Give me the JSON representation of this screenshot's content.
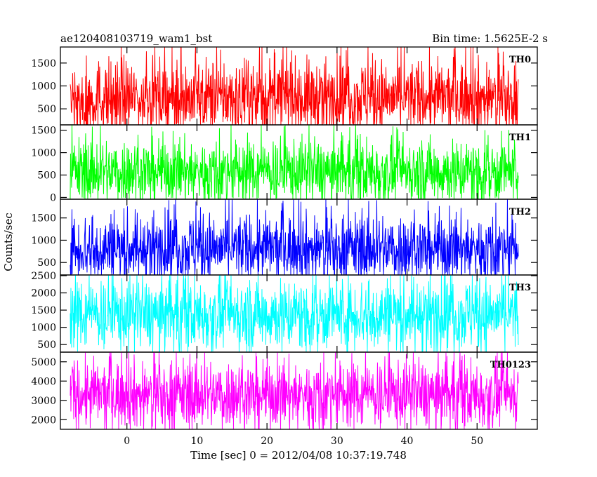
{
  "chart_data": {
    "type": "line",
    "title_left": "ae120408103719_wam1_bst",
    "title_right": "Bin time: 1.5625E-2 s",
    "xlabel": "Time [sec] 0 = 2012/04/08 10:37:19.748",
    "ylabel": "Counts/sec",
    "xlim": [
      -9.5,
      58.6
    ],
    "x_ticks": [
      0,
      10,
      20,
      30,
      40,
      50
    ],
    "x_tick_labels": [
      "0",
      "10",
      "20",
      "30",
      "40",
      "50"
    ],
    "data_range": [
      -8.1,
      55.9
    ],
    "bin_time": 0.015625,
    "panels": [
      {
        "name": "TH0",
        "color": "#ff0000",
        "ylim": [
          150,
          1850
        ],
        "y_ticks": [
          500,
          1000,
          1500
        ],
        "y_tick_labels": [
          "500",
          "1000",
          "1500"
        ],
        "mean": 750,
        "low": 150,
        "high": 1850
      },
      {
        "name": "TH1",
        "color": "#00ff00",
        "ylim": [
          -40,
          1620
        ],
        "y_ticks": [
          0,
          500,
          1000,
          1500
        ],
        "y_tick_labels": [
          "0",
          "500",
          "1000",
          "1500"
        ],
        "mean": 580,
        "low": 30,
        "high": 1560
      },
      {
        "name": "TH2",
        "color": "#0000ff",
        "ylim": [
          220,
          1920
        ],
        "y_ticks": [
          500,
          1000,
          1500
        ],
        "y_tick_labels": [
          "500",
          "1000",
          "1500"
        ],
        "mean": 820,
        "low": 260,
        "high": 1880
      },
      {
        "name": "TH3",
        "color": "#00ffff",
        "ylim": [
          280,
          2520
        ],
        "y_ticks": [
          500,
          1000,
          1500,
          2000,
          2500
        ],
        "y_tick_labels": [
          "500",
          "1000",
          "1500",
          "2000",
          "2500"
        ],
        "mean": 1380,
        "low": 300,
        "high": 2500
      },
      {
        "name": "TH0123",
        "color": "#ff00ff",
        "ylim": [
          1500,
          5500
        ],
        "y_ticks": [
          2000,
          3000,
          4000,
          5000
        ],
        "y_tick_labels": [
          "2000",
          "3000",
          "4000",
          "5000"
        ],
        "mean": 3300,
        "low": 1500,
        "high": 5300
      }
    ],
    "grid": false,
    "legend": "none"
  }
}
